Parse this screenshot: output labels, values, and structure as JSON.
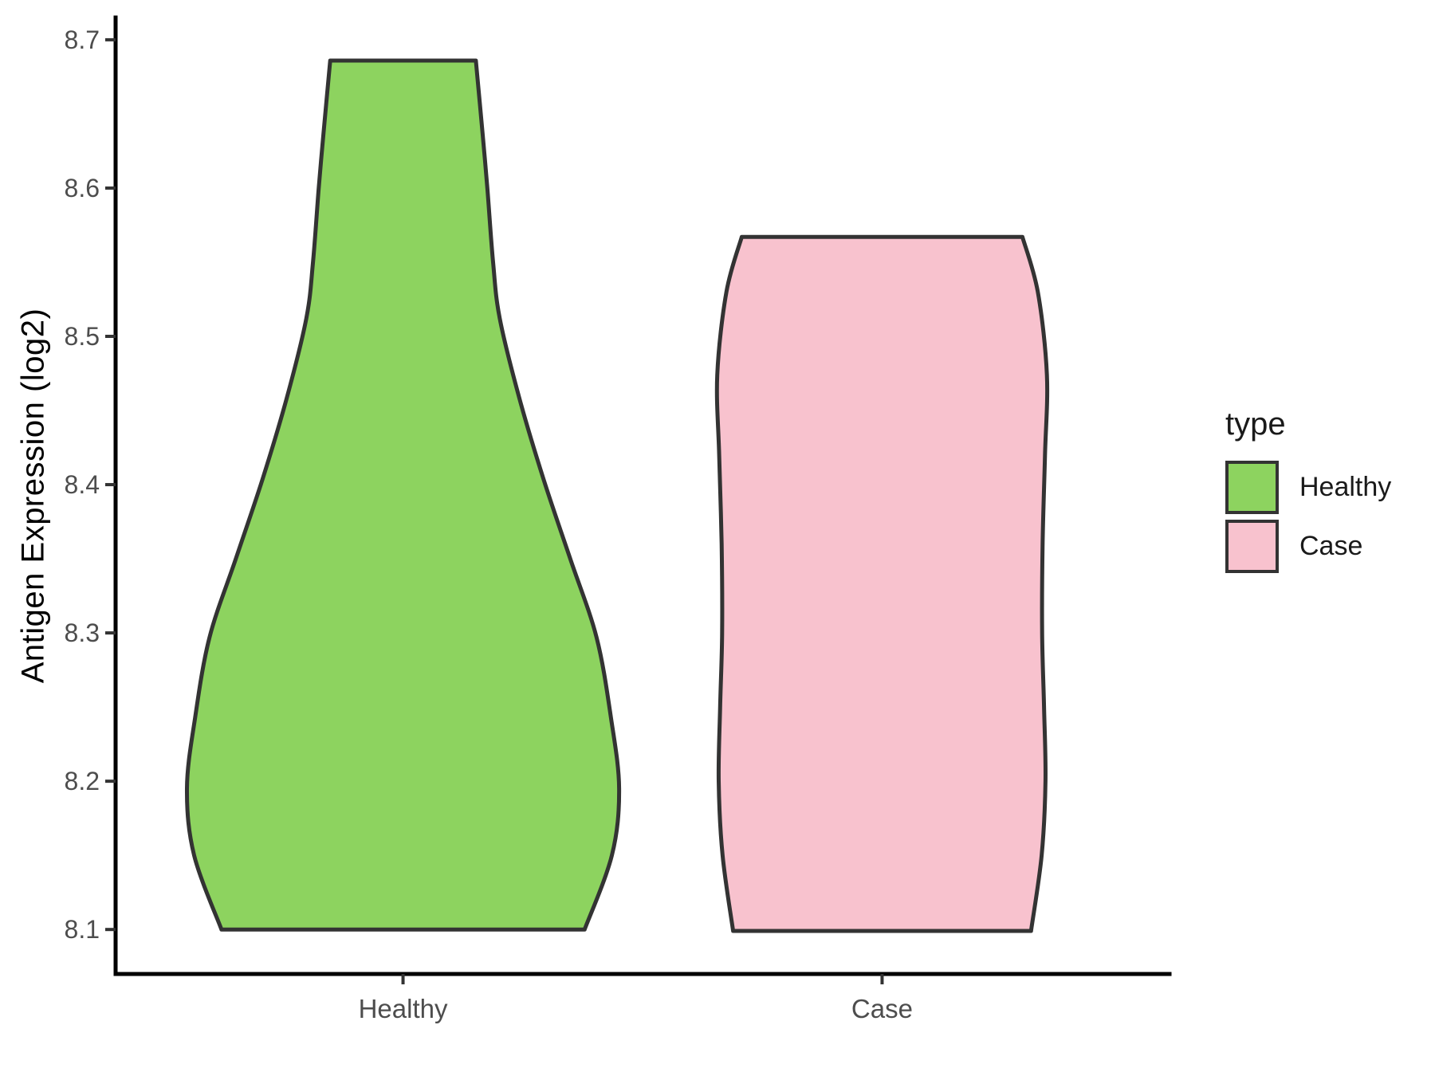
{
  "chart_data": {
    "type": "violin",
    "title": "",
    "xlabel": "",
    "ylabel": "Antigen Expression (log2)",
    "categories": [
      "Healthy",
      "Case"
    ],
    "y_ticks": [
      8.1,
      8.2,
      8.3,
      8.4,
      8.5,
      8.6,
      8.7
    ],
    "y_tick_labels": [
      "8.1",
      "8.2",
      "8.3",
      "8.4",
      "8.5",
      "8.6",
      "8.7"
    ],
    "y_range": [
      8.07,
      8.715
    ],
    "x_range": [
      0.4,
      2.6
    ],
    "grid": "off",
    "legend_position": "right",
    "stroke_color": "#333333",
    "axis_line_color": "#000000",
    "tick_color": "#333333",
    "tick_label_color": "#4d4d4d",
    "series": [
      {
        "name": "Healthy",
        "position": 1,
        "fill": "#8dd35f",
        "value_min": 8.1,
        "value_max": 8.69,
        "profile": [
          [
            8.686,
            0.152
          ],
          [
            8.637,
            0.166
          ],
          [
            8.6,
            0.176
          ],
          [
            8.55,
            0.188
          ],
          [
            8.512,
            0.202
          ],
          [
            8.458,
            0.243
          ],
          [
            8.404,
            0.293
          ],
          [
            8.35,
            0.349
          ],
          [
            8.297,
            0.404
          ],
          [
            8.243,
            0.434
          ],
          [
            8.195,
            0.451
          ],
          [
            8.15,
            0.436
          ],
          [
            8.1,
            0.379
          ]
        ]
      },
      {
        "name": "Case",
        "position": 2,
        "fill": "#f8c2ce",
        "value_min": 8.1,
        "value_max": 8.57,
        "profile": [
          [
            8.567,
            0.293
          ],
          [
            8.53,
            0.325
          ],
          [
            8.474,
            0.344
          ],
          [
            8.42,
            0.34
          ],
          [
            8.36,
            0.335
          ],
          [
            8.3,
            0.334
          ],
          [
            8.25,
            0.338
          ],
          [
            8.2,
            0.341
          ],
          [
            8.15,
            0.333
          ],
          [
            8.099,
            0.311
          ]
        ]
      }
    ]
  },
  "legend": {
    "title": "type",
    "items": [
      {
        "label": "Healthy",
        "color": "#8dd35f"
      },
      {
        "label": "Case",
        "color": "#f8c2ce"
      }
    ]
  }
}
